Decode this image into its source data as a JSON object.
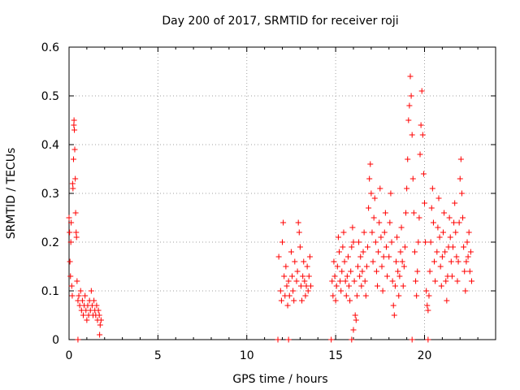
{
  "chart_data": {
    "type": "scatter",
    "title": "Day 200 of 2017, SRMTID for receiver roji",
    "xlabel": "GPS time / hours",
    "ylabel": "SRMTID / TECUs",
    "xlim": [
      0,
      24
    ],
    "ylim": [
      0,
      0.6
    ],
    "xticks": [
      0,
      5,
      10,
      15,
      20
    ],
    "yticks": [
      0,
      0.1,
      0.2,
      0.3,
      0.4,
      0.5,
      0.6
    ],
    "xtick_labels": [
      "0",
      "5",
      "10",
      "15",
      "20"
    ],
    "ytick_labels": [
      "0",
      "0.1",
      "0.2",
      "0.3",
      "0.4",
      "0.5",
      "0.6"
    ],
    "grid": true,
    "marker": "+",
    "series_color": "#ff0000",
    "series": [
      {
        "name": "SRMTID",
        "points": [
          [
            0.0,
            0.25
          ],
          [
            0.03,
            0.22
          ],
          [
            0.05,
            0.16
          ],
          [
            0.08,
            0.13
          ],
          [
            0.1,
            0.2
          ],
          [
            0.12,
            0.24
          ],
          [
            0.15,
            0.11
          ],
          [
            0.18,
            0.09
          ],
          [
            0.2,
            0.32
          ],
          [
            0.22,
            0.31
          ],
          [
            0.25,
            0.37
          ],
          [
            0.27,
            0.44
          ],
          [
            0.28,
            0.45
          ],
          [
            0.3,
            0.43
          ],
          [
            0.32,
            0.39
          ],
          [
            0.35,
            0.33
          ],
          [
            0.37,
            0.26
          ],
          [
            0.4,
            0.22
          ],
          [
            0.42,
            0.21
          ],
          [
            0.45,
            0.12
          ],
          [
            0.5,
            0.08
          ],
          [
            0.55,
            0.09
          ],
          [
            0.6,
            0.07
          ],
          [
            0.65,
            0.1
          ],
          [
            0.7,
            0.06
          ],
          [
            0.75,
            0.08
          ],
          [
            0.8,
            0.05
          ],
          [
            0.85,
            0.07
          ],
          [
            0.9,
            0.09
          ],
          [
            0.95,
            0.06
          ],
          [
            1.0,
            0.04
          ],
          [
            1.05,
            0.07
          ],
          [
            1.1,
            0.05
          ],
          [
            1.15,
            0.08
          ],
          [
            1.2,
            0.06
          ],
          [
            1.25,
            0.1
          ],
          [
            1.3,
            0.07
          ],
          [
            1.35,
            0.05
          ],
          [
            1.4,
            0.08
          ],
          [
            1.45,
            0.06
          ],
          [
            1.5,
            0.05
          ],
          [
            1.55,
            0.07
          ],
          [
            1.6,
            0.04
          ],
          [
            1.65,
            0.06
          ],
          [
            1.7,
            0.05
          ],
          [
            1.75,
            0.03
          ],
          [
            1.8,
            0.04
          ],
          [
            1.72,
            0.01
          ],
          [
            0.5,
            0.0
          ],
          [
            11.8,
            0.17
          ],
          [
            11.9,
            0.1
          ],
          [
            11.95,
            0.08
          ],
          [
            12.0,
            0.2
          ],
          [
            12.05,
            0.24
          ],
          [
            12.1,
            0.13
          ],
          [
            12.15,
            0.09
          ],
          [
            12.2,
            0.15
          ],
          [
            12.25,
            0.11
          ],
          [
            12.3,
            0.07
          ],
          [
            12.35,
            0.12
          ],
          [
            12.4,
            0.09
          ],
          [
            12.5,
            0.18
          ],
          [
            12.55,
            0.13
          ],
          [
            12.6,
            0.1
          ],
          [
            12.65,
            0.08
          ],
          [
            12.7,
            0.16
          ],
          [
            12.8,
            0.12
          ],
          [
            12.85,
            0.14
          ],
          [
            12.9,
            0.24
          ],
          [
            12.95,
            0.22
          ],
          [
            13.0,
            0.19
          ],
          [
            13.05,
            0.11
          ],
          [
            13.1,
            0.08
          ],
          [
            13.15,
            0.13
          ],
          [
            13.2,
            0.16
          ],
          [
            13.25,
            0.12
          ],
          [
            13.3,
            0.09
          ],
          [
            13.35,
            0.11
          ],
          [
            13.4,
            0.15
          ],
          [
            13.45,
            0.1
          ],
          [
            13.5,
            0.13
          ],
          [
            13.55,
            0.17
          ],
          [
            13.6,
            0.11
          ],
          [
            11.75,
            0.0
          ],
          [
            12.35,
            0.0
          ],
          [
            14.8,
            0.12
          ],
          [
            14.85,
            0.09
          ],
          [
            14.9,
            0.16
          ],
          [
            14.95,
            0.13
          ],
          [
            15.0,
            0.08
          ],
          [
            15.05,
            0.11
          ],
          [
            15.1,
            0.15
          ],
          [
            15.15,
            0.21
          ],
          [
            15.2,
            0.18
          ],
          [
            15.25,
            0.12
          ],
          [
            15.3,
            0.1
          ],
          [
            15.35,
            0.14
          ],
          [
            15.4,
            0.19
          ],
          [
            15.45,
            0.22
          ],
          [
            15.5,
            0.16
          ],
          [
            15.55,
            0.12
          ],
          [
            15.6,
            0.09
          ],
          [
            15.65,
            0.13
          ],
          [
            15.7,
            0.17
          ],
          [
            15.75,
            0.11
          ],
          [
            15.8,
            0.08
          ],
          [
            15.85,
            0.14
          ],
          [
            15.9,
            0.19
          ],
          [
            15.95,
            0.23
          ],
          [
            16.0,
            0.2
          ],
          [
            16.05,
            0.12
          ],
          [
            16.1,
            0.05
          ],
          [
            16.15,
            0.04
          ],
          [
            16.2,
            0.09
          ],
          [
            16.25,
            0.15
          ],
          [
            16.3,
            0.2
          ],
          [
            16.35,
            0.13
          ],
          [
            16.4,
            0.17
          ],
          [
            16.45,
            0.11
          ],
          [
            16.5,
            0.14
          ],
          [
            16.55,
            0.18
          ],
          [
            16.6,
            0.22
          ],
          [
            16.65,
            0.12
          ],
          [
            16.7,
            0.09
          ],
          [
            16.75,
            0.15
          ],
          [
            16.8,
            0.19
          ],
          [
            16.85,
            0.27
          ],
          [
            16.9,
            0.33
          ],
          [
            16.95,
            0.36
          ],
          [
            17.0,
            0.3
          ],
          [
            17.05,
            0.22
          ],
          [
            17.1,
            0.16
          ],
          [
            17.15,
            0.25
          ],
          [
            17.2,
            0.29
          ],
          [
            17.25,
            0.2
          ],
          [
            17.3,
            0.14
          ],
          [
            17.35,
            0.11
          ],
          [
            17.4,
            0.18
          ],
          [
            17.45,
            0.24
          ],
          [
            17.5,
            0.31
          ],
          [
            17.55,
            0.21
          ],
          [
            17.6,
            0.15
          ],
          [
            17.65,
            0.1
          ],
          [
            17.7,
            0.17
          ],
          [
            17.75,
            0.22
          ],
          [
            17.8,
            0.26
          ],
          [
            17.85,
            0.19
          ],
          [
            17.9,
            0.13
          ],
          [
            18.0,
            0.17
          ],
          [
            18.05,
            0.24
          ],
          [
            18.1,
            0.3
          ],
          [
            18.15,
            0.2
          ],
          [
            18.2,
            0.12
          ],
          [
            18.25,
            0.07
          ],
          [
            18.3,
            0.05
          ],
          [
            18.35,
            0.11
          ],
          [
            18.4,
            0.16
          ],
          [
            18.45,
            0.21
          ],
          [
            18.5,
            0.14
          ],
          [
            18.55,
            0.09
          ],
          [
            18.6,
            0.13
          ],
          [
            18.65,
            0.18
          ],
          [
            18.7,
            0.23
          ],
          [
            18.75,
            0.16
          ],
          [
            18.8,
            0.11
          ],
          [
            18.85,
            0.15
          ],
          [
            18.9,
            0.19
          ],
          [
            18.95,
            0.26
          ],
          [
            19.0,
            0.31
          ],
          [
            19.05,
            0.37
          ],
          [
            19.1,
            0.45
          ],
          [
            19.15,
            0.48
          ],
          [
            19.2,
            0.54
          ],
          [
            19.25,
            0.5
          ],
          [
            19.3,
            0.42
          ],
          [
            19.35,
            0.33
          ],
          [
            19.4,
            0.26
          ],
          [
            19.45,
            0.18
          ],
          [
            19.5,
            0.12
          ],
          [
            19.55,
            0.09
          ],
          [
            19.6,
            0.14
          ],
          [
            19.65,
            0.2
          ],
          [
            19.7,
            0.25
          ],
          [
            19.75,
            0.38
          ],
          [
            19.8,
            0.44
          ],
          [
            19.85,
            0.51
          ],
          [
            19.9,
            0.42
          ],
          [
            19.95,
            0.34
          ],
          [
            20.0,
            0.28
          ],
          [
            20.05,
            0.2
          ],
          [
            20.1,
            0.1
          ],
          [
            20.15,
            0.07
          ],
          [
            20.2,
            0.06
          ],
          [
            20.25,
            0.09
          ],
          [
            20.3,
            0.14
          ],
          [
            20.35,
            0.2
          ],
          [
            20.4,
            0.27
          ],
          [
            20.45,
            0.31
          ],
          [
            20.5,
            0.24
          ],
          [
            20.55,
            0.16
          ],
          [
            20.6,
            0.12
          ],
          [
            20.7,
            0.18
          ],
          [
            20.75,
            0.23
          ],
          [
            20.8,
            0.29
          ],
          [
            20.85,
            0.21
          ],
          [
            20.9,
            0.15
          ],
          [
            20.95,
            0.11
          ],
          [
            21.0,
            0.17
          ],
          [
            21.05,
            0.22
          ],
          [
            21.1,
            0.26
          ],
          [
            21.15,
            0.18
          ],
          [
            21.2,
            0.12
          ],
          [
            21.25,
            0.08
          ],
          [
            21.3,
            0.13
          ],
          [
            21.35,
            0.19
          ],
          [
            21.4,
            0.25
          ],
          [
            21.45,
            0.21
          ],
          [
            21.5,
            0.16
          ],
          [
            21.55,
            0.13
          ],
          [
            21.6,
            0.19
          ],
          [
            21.65,
            0.24
          ],
          [
            21.7,
            0.28
          ],
          [
            21.75,
            0.22
          ],
          [
            21.8,
            0.17
          ],
          [
            21.85,
            0.12
          ],
          [
            21.9,
            0.16
          ],
          [
            21.95,
            0.24
          ],
          [
            22.0,
            0.33
          ],
          [
            22.05,
            0.37
          ],
          [
            22.1,
            0.3
          ],
          [
            22.15,
            0.25
          ],
          [
            22.2,
            0.19
          ],
          [
            22.25,
            0.14
          ],
          [
            22.3,
            0.1
          ],
          [
            22.35,
            0.16
          ],
          [
            22.4,
            0.2
          ],
          [
            22.45,
            0.17
          ],
          [
            22.5,
            0.22
          ],
          [
            22.55,
            0.14
          ],
          [
            22.6,
            0.18
          ],
          [
            22.65,
            0.12
          ],
          [
            14.75,
            0.0
          ],
          [
            15.9,
            0.0
          ],
          [
            16.0,
            0.02
          ],
          [
            19.3,
            0.0
          ],
          [
            20.2,
            0.0
          ]
        ]
      }
    ]
  }
}
